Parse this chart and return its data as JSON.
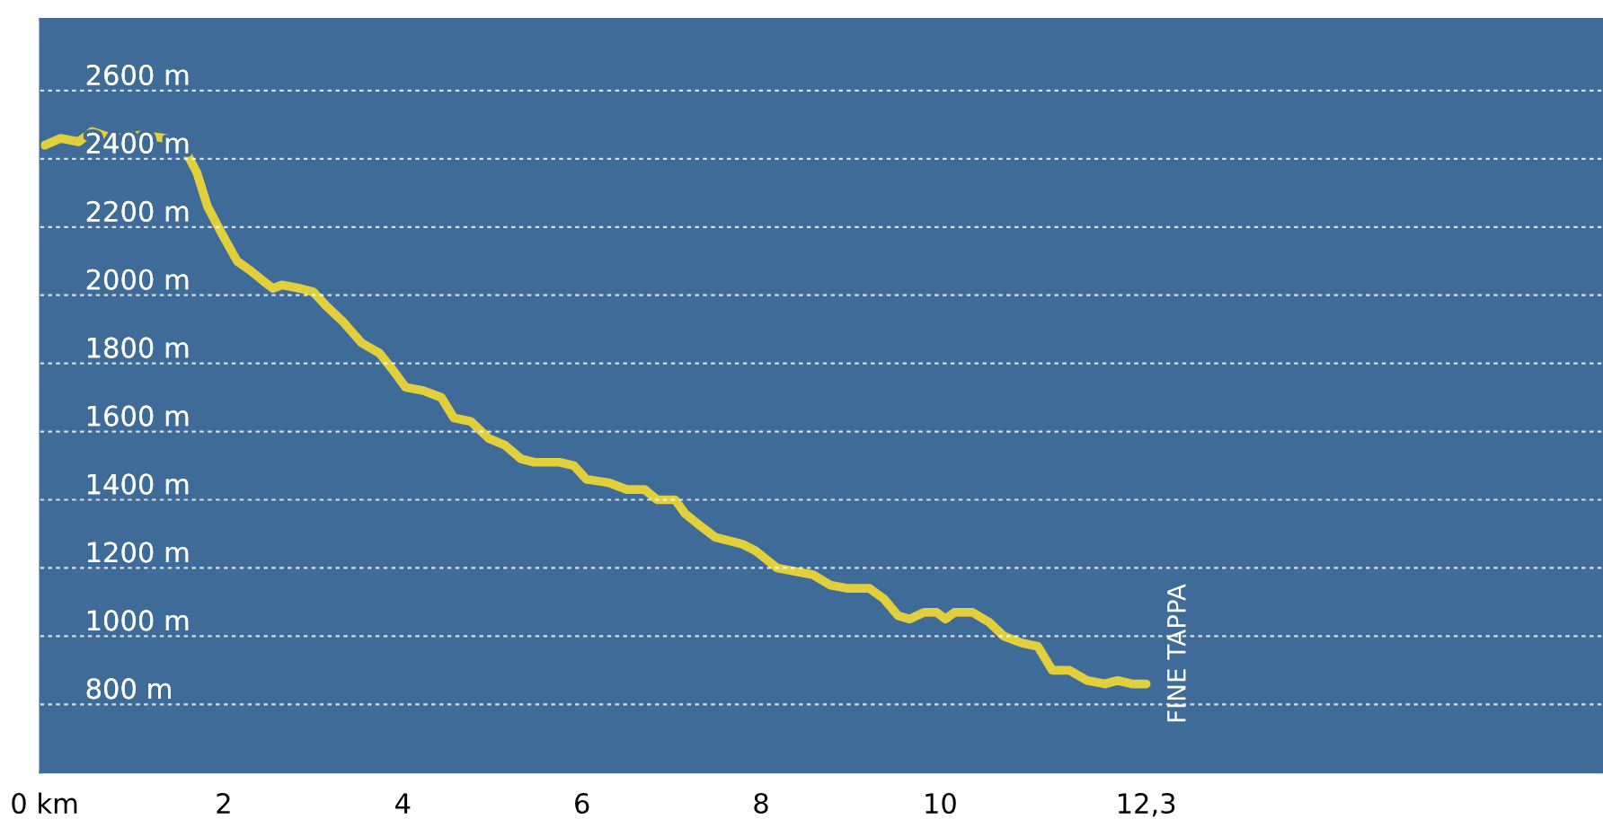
{
  "chart_data": {
    "type": "line",
    "color": "#e2cf3c",
    "x": [
      0,
      0.18,
      0.38,
      0.53,
      0.77,
      1.07,
      1.36,
      1.56,
      1.7,
      1.82,
      1.96,
      2.15,
      2.31,
      2.45,
      2.55,
      2.65,
      2.85,
      3.0,
      3.14,
      3.34,
      3.54,
      3.74,
      3.89,
      4.03,
      4.23,
      4.43,
      4.57,
      4.76,
      4.96,
      5.14,
      5.32,
      5.47,
      5.75,
      5.91,
      6.05,
      6.3,
      6.5,
      6.7,
      6.84,
      7.04,
      7.15,
      7.29,
      7.49,
      7.79,
      7.94,
      8.18,
      8.38,
      8.58,
      8.77,
      8.97,
      9.21,
      9.37,
      9.53,
      9.66,
      9.82,
      9.96,
      10.06,
      10.16,
      10.36,
      10.55,
      10.71,
      10.91,
      11.09,
      11.25,
      11.44,
      11.64,
      11.84,
      11.98,
      12.14,
      12.3
    ],
    "values": [
      2440,
      2460,
      2450,
      2480,
      2460,
      2470,
      2460,
      2430,
      2360,
      2260,
      2190,
      2100,
      2070,
      2040,
      2020,
      2030,
      2020,
      2010,
      1970,
      1920,
      1860,
      1830,
      1780,
      1730,
      1720,
      1700,
      1640,
      1630,
      1580,
      1560,
      1520,
      1510,
      1510,
      1500,
      1460,
      1450,
      1430,
      1430,
      1400,
      1400,
      1360,
      1330,
      1290,
      1270,
      1250,
      1200,
      1190,
      1180,
      1150,
      1140,
      1140,
      1110,
      1060,
      1050,
      1070,
      1070,
      1050,
      1070,
      1070,
      1040,
      1000,
      980,
      970,
      900,
      900,
      870,
      860,
      870,
      860,
      860
    ],
    "xlim": [
      -0.05,
      17.4
    ],
    "ylim": [
      600,
      2810
    ],
    "xticks": [
      {
        "value": 0,
        "label": "0 km"
      },
      2,
      4,
      6,
      8,
      10,
      {
        "value": 12.3,
        "label": "12,3"
      }
    ],
    "yticks": [
      {
        "value": 800,
        "label": "800 m"
      },
      {
        "value": 1000,
        "label": "1000 m"
      },
      {
        "value": 1200,
        "label": "1200 m"
      },
      {
        "value": 1400,
        "label": "1400 m"
      },
      {
        "value": 1600,
        "label": "1600 m"
      },
      {
        "value": 1800,
        "label": "1800 m"
      },
      {
        "value": 2000,
        "label": "2000 m"
      },
      {
        "value": 2200,
        "label": "2200 m"
      },
      {
        "value": 2400,
        "label": "2400 m"
      },
      {
        "value": 2600,
        "label": "2600 m"
      }
    ],
    "grid": "y",
    "line_style": "solid",
    "marker": "none",
    "annotations": [
      {
        "text": "FINE TAPPA",
        "x": 12.3,
        "y": 860
      }
    ]
  }
}
